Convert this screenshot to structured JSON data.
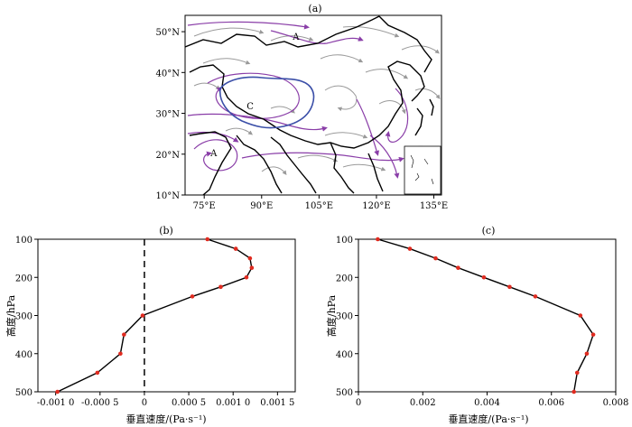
{
  "panel_a": {
    "label": "(a)",
    "lon_ticks": [
      "75°E",
      "90°E",
      "105°E",
      "120°E",
      "135°E"
    ],
    "lat_ticks": [
      "50°N",
      "40°N",
      "30°N",
      "20°N",
      "10°N"
    ],
    "annotations": [
      {
        "text": "A",
        "lon": 99,
        "lat": 48
      },
      {
        "text": "C",
        "lon": 87,
        "lat": 31
      },
      {
        "text": "A",
        "lon": 77.5,
        "lat": 19.5
      }
    ],
    "colors": {
      "frame": "#000000",
      "plateau_outline": "#3b4fa8",
      "stream_strong": "#8a3ea8",
      "stream_weak": "#9a9a9a"
    }
  },
  "chart_data": [
    {
      "type": "line",
      "panel_label": "(b)",
      "xlabel": "垂直速度/(Pa·s⁻¹)",
      "ylabel": "高度/hPa",
      "xlim": [
        -0.0012,
        0.0017
      ],
      "ylim": [
        500,
        100
      ],
      "x_ticks": [
        "-0.001 0",
        "-0.000 5",
        "0",
        "0.000 5",
        "0.001 0",
        "0.001 5"
      ],
      "y_ticks": [
        "100",
        "200",
        "300",
        "400",
        "500"
      ],
      "zero_line": true,
      "x": [
        0.00071,
        0.00103,
        0.00119,
        0.00121,
        0.00115,
        0.00086,
        0.00054,
        -2e-05,
        -0.00023,
        -0.00027,
        -0.00053,
        -0.00098
      ],
      "y": [
        100,
        125,
        150,
        175,
        200,
        225,
        250,
        300,
        350,
        400,
        450,
        500
      ],
      "marker_color": "#e02b20",
      "line_color": "#000000"
    },
    {
      "type": "line",
      "panel_label": "(c)",
      "xlabel": "垂直速度/(Pa·s⁻¹)",
      "ylabel": "高度/hPa",
      "xlim": [
        0,
        0.008
      ],
      "ylim": [
        500,
        100
      ],
      "x_ticks": [
        "0",
        "0.002",
        "0.004",
        "0.006",
        "0.008"
      ],
      "y_ticks": [
        "100",
        "200",
        "300",
        "400",
        "500"
      ],
      "x": [
        0.0006,
        0.0016,
        0.0024,
        0.0031,
        0.0039,
        0.0047,
        0.0055,
        0.0069,
        0.0073,
        0.0071,
        0.0068,
        0.0067
      ],
      "y": [
        100,
        125,
        150,
        175,
        200,
        225,
        250,
        300,
        350,
        400,
        450,
        500
      ],
      "marker_color": "#e02b20",
      "line_color": "#000000"
    }
  ]
}
